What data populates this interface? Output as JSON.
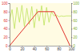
{
  "chart_data": {
    "type": "line",
    "xlim": [
      0,
      100
    ],
    "xticks": [
      0,
      20,
      40,
      60,
      80,
      100
    ],
    "ylim": [
      0,
      100
    ],
    "yticks": [
      0,
      20,
      40,
      60,
      80,
      100
    ],
    "y2lim": [
      0,
      100
    ],
    "y2ticks": [
      0,
      20,
      40,
      60,
      80,
      100
    ],
    "series": [
      {
        "color": "#bde35a",
        "axis": "y2",
        "x": [
          0,
          4,
          8,
          12,
          16,
          20,
          24,
          28,
          32,
          36,
          40,
          44,
          48,
          52,
          56,
          60,
          64,
          68,
          72,
          76,
          80,
          84,
          88,
          92,
          96,
          100
        ],
        "values": [
          60,
          85,
          40,
          90,
          55,
          95,
          45,
          88,
          50,
          92,
          42,
          86,
          58,
          94,
          48,
          90,
          55,
          80,
          70,
          72,
          68,
          70,
          69,
          70,
          70,
          70
        ]
      },
      {
        "color": "#e0302a",
        "x": [
          0,
          46,
          72,
          98
        ],
        "values": [
          0,
          80,
          80,
          0
        ]
      }
    ]
  }
}
